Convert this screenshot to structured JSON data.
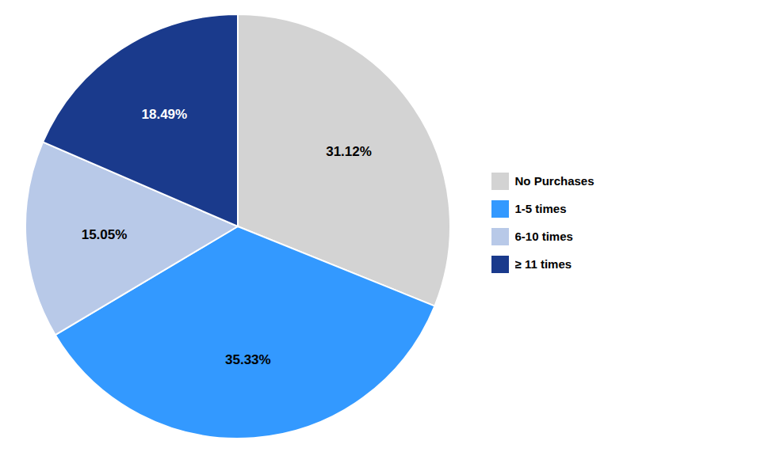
{
  "chart_data": {
    "type": "pie",
    "categories": [
      "No Purchases",
      "1-5 times",
      "6-10 times",
      "≥ 11 times"
    ],
    "values": [
      31.12,
      35.33,
      15.05,
      18.49
    ],
    "value_labels": [
      "31.12%",
      "35.33%",
      "15.05%",
      "18.49%"
    ],
    "colors": [
      "#d3d3d3",
      "#3399ff",
      "#b8c9e8",
      "#1a3a8c"
    ],
    "data_labels": true,
    "legend": "right"
  }
}
